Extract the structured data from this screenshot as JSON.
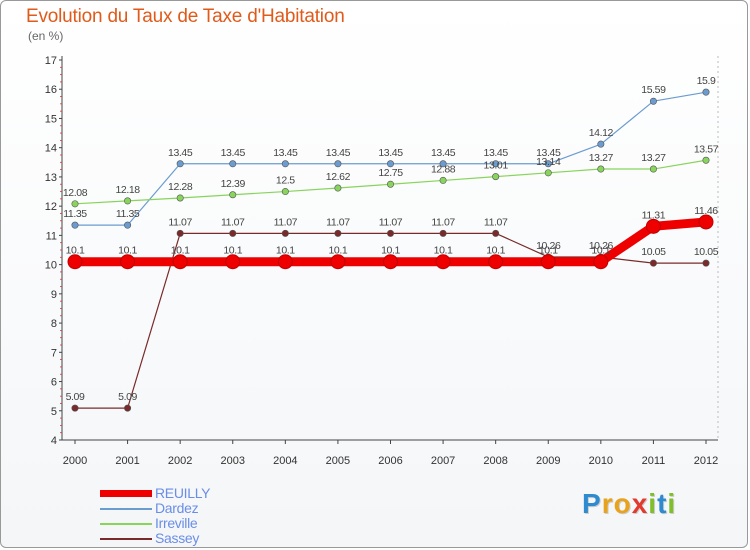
{
  "title": "Evolution du Taux de Taxe d'Habitation",
  "unit": "(en %)",
  "logo": {
    "letters": [
      "P",
      "r",
      "o",
      "x",
      "i",
      "t",
      "i"
    ],
    "colors": [
      "#2e8bcf",
      "#e8a21b",
      "#e8a21b",
      "#e23b2e",
      "#7fbf2a",
      "#2e8bcf",
      "#7fbf2a"
    ]
  },
  "chart_data": {
    "type": "line",
    "title": "Evolution du Taux de Taxe d'Habitation",
    "ylabel": "(en %)",
    "xlabel": "",
    "x": [
      "2000",
      "2001",
      "2002",
      "2003",
      "2004",
      "2005",
      "2006",
      "2007",
      "2008",
      "2009",
      "2010",
      "2011",
      "2012"
    ],
    "ylim": [
      4,
      17
    ],
    "yticks": [
      "4",
      "5",
      "6",
      "7",
      "8",
      "9",
      "10",
      "11",
      "12",
      "13",
      "14",
      "15",
      "16",
      "17"
    ],
    "legend_position": "bottom-left",
    "series": [
      {
        "name": "REUILLY",
        "color": "#ee0000",
        "width": 9,
        "marker": 7,
        "values": [
          10.1,
          10.1,
          10.1,
          10.1,
          10.1,
          10.1,
          10.1,
          10.1,
          10.1,
          10.1,
          10.1,
          11.31,
          11.46
        ],
        "labels": [
          "10.1",
          "10.1",
          "10.1",
          "10.1",
          "10.1",
          "10.1",
          "10.1",
          "10.1",
          "10.1",
          "10.1",
          "10.1",
          "11.31",
          "11.46"
        ]
      },
      {
        "name": "Dardez",
        "color": "#6b9ccf",
        "width": 1.2,
        "marker": 3.2,
        "values": [
          11.35,
          11.35,
          13.45,
          13.45,
          13.45,
          13.45,
          13.45,
          13.45,
          13.45,
          13.45,
          14.12,
          15.59,
          15.9
        ],
        "labels": [
          "11.35",
          "11.35",
          "13.45",
          "13.45",
          "13.45",
          "13.45",
          "13.45",
          "13.45",
          "13.45",
          "13.45",
          "14.12",
          "15.59",
          "15.9"
        ]
      },
      {
        "name": "Irreville",
        "color": "#88d45c",
        "width": 1.2,
        "marker": 3.2,
        "values": [
          12.08,
          12.18,
          12.28,
          12.39,
          12.5,
          12.62,
          12.75,
          12.88,
          13.01,
          13.14,
          13.27,
          13.27,
          13.57
        ],
        "labels": [
          "12.08",
          "12.18",
          "12.28",
          "12.39",
          "12.5",
          "12.62",
          "12.75",
          "12.88",
          "13.01",
          "13.14",
          "13.27",
          "13.27",
          "13.57"
        ]
      },
      {
        "name": "Sassey",
        "color": "#7a2a2a",
        "width": 1.2,
        "marker": 3.2,
        "values": [
          5.09,
          5.09,
          11.07,
          11.07,
          11.07,
          11.07,
          11.07,
          11.07,
          11.07,
          10.26,
          10.26,
          10.05,
          10.05
        ],
        "labels": [
          "5.09",
          "5.09",
          "11.07",
          "11.07",
          "11.07",
          "11.07",
          "11.07",
          "11.07",
          "11.07",
          "10.26",
          "10.26",
          "10.05",
          "10.05"
        ]
      }
    ]
  },
  "legend": [
    {
      "label": "REUILLY",
      "color": "#ee0000",
      "text_color": "#6a8ee6",
      "thick": true
    },
    {
      "label": "Dardez",
      "color": "#6b9ccf",
      "text_color": "#6a8ee6",
      "thick": false
    },
    {
      "label": "Irreville",
      "color": "#88d45c",
      "text_color": "#6a8ee6",
      "thick": false
    },
    {
      "label": "Sassey",
      "color": "#7a2a2a",
      "text_color": "#6a8ee6",
      "thick": false
    }
  ]
}
